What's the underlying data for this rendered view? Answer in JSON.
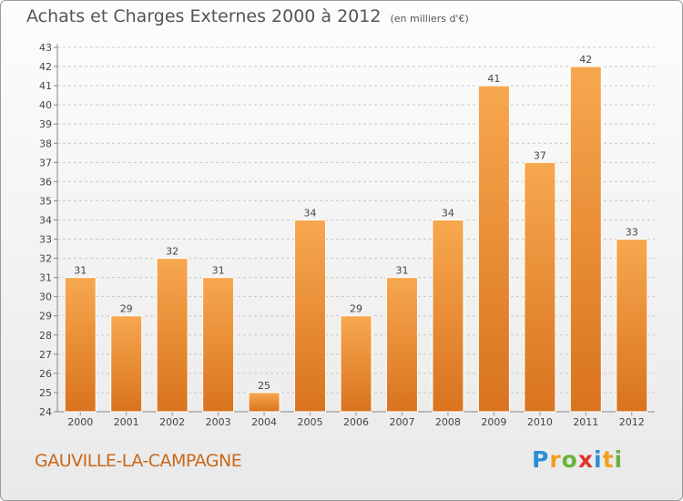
{
  "title": "Achats et Charges Externes 2000 à 2012",
  "unit": "(en milliers d'€)",
  "commune": "GAUVILLE-LA-CAMPAGNE",
  "logo": {
    "letters": [
      "P",
      "r",
      "o",
      "x",
      "i",
      "t",
      "i"
    ],
    "colors": [
      "#2a8fd6",
      "#f0a020",
      "#6cb33e",
      "#e0332a",
      "#2a8fd6",
      "#f0a020",
      "#6cb33e"
    ]
  },
  "colors": {
    "bar_top": "#f7a84f",
    "bar_bottom": "#d9731e",
    "grid": "#c8c8c8"
  },
  "chart_data": {
    "type": "bar",
    "categories": [
      "2000",
      "2001",
      "2002",
      "2003",
      "2004",
      "2005",
      "2006",
      "2007",
      "2008",
      "2009",
      "2010",
      "2011",
      "2012"
    ],
    "values": [
      31,
      29,
      32,
      31,
      25,
      34,
      29,
      31,
      34,
      41,
      37,
      42,
      33
    ],
    "ylim": [
      24,
      43
    ],
    "yticks": [
      24,
      25,
      26,
      27,
      28,
      29,
      30,
      31,
      32,
      33,
      34,
      35,
      36,
      37,
      38,
      39,
      40,
      41,
      42,
      43
    ],
    "grid": true
  }
}
